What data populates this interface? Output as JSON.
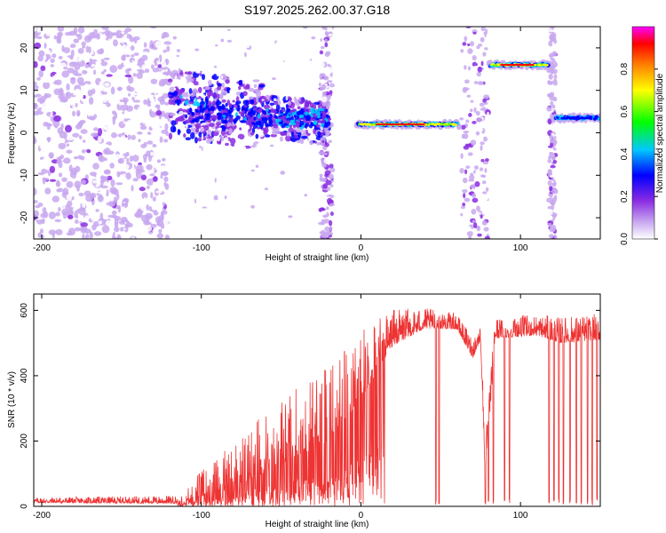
{
  "figure": {
    "title": "S197.2025.262.00.37.G18"
  },
  "chart_data": [
    {
      "type": "heatmap",
      "title": "S197.2025.262.00.37.G18",
      "xlabel": "Height of straight line (km)",
      "ylabel": "Frequency (Hz)",
      "xlim": [
        -205,
        150
      ],
      "ylim": [
        -25,
        25
      ],
      "xticks": [
        -200,
        -100,
        0,
        100
      ],
      "yticks": [
        -20,
        -10,
        0,
        10,
        20
      ],
      "colorbar": {
        "label": "Normalized spectral amplitude",
        "range": [
          0,
          1
        ],
        "ticks": [
          0.0,
          0.2,
          0.4,
          0.6,
          0.8
        ],
        "colors": [
          "#ffffff",
          "#c8a8f0",
          "#8a2be2",
          "#0000ff",
          "#00c8ff",
          "#00ff00",
          "#ffff00",
          "#ff8000",
          "#ff0000",
          "#ff00ff"
        ]
      },
      "features": [
        {
          "x_range": [
            -205,
            -120
          ],
          "frequency": "broadband -25 to 25",
          "amplitude": 0.15
        },
        {
          "x_range": [
            -120,
            -20
          ],
          "frequency_center": [
            6,
            2
          ],
          "amplitude": 0.3
        },
        {
          "x_range": [
            -3,
            62
          ],
          "frequency_center": 2,
          "amplitude": 0.9
        },
        {
          "x_range": [
            80,
            120
          ],
          "frequency_center": 16,
          "amplitude": 0.9
        },
        {
          "x_range": [
            120,
            150
          ],
          "frequency_center": 3,
          "amplitude": 0.5
        }
      ]
    },
    {
      "type": "line",
      "xlabel": "Height of straight line (km)",
      "ylabel": "SNR (10 * v/v)",
      "xlim": [
        -205,
        150
      ],
      "ylim": [
        0,
        650
      ],
      "xticks": [
        -200,
        -100,
        0,
        100
      ],
      "yticks": [
        0,
        200,
        400,
        600
      ],
      "color": "#ee3333",
      "envelope": [
        {
          "x": -205,
          "base": 15,
          "spread": 10
        },
        {
          "x": -115,
          "base": 15,
          "spread": 15
        },
        {
          "x": -105,
          "base": 40,
          "spread": 40
        },
        {
          "x": -80,
          "base": 90,
          "spread": 90
        },
        {
          "x": -50,
          "base": 180,
          "spread": 130
        },
        {
          "x": -20,
          "base": 260,
          "spread": 150
        },
        {
          "x": 0,
          "base": 380,
          "spread": 130
        },
        {
          "x": 20,
          "base": 520,
          "spread": 70
        },
        {
          "x": 40,
          "base": 560,
          "spread": 40
        },
        {
          "x": 60,
          "base": 555,
          "spread": 30
        },
        {
          "x": 70,
          "base": 470,
          "spread": 40
        },
        {
          "x": 75,
          "base": 520,
          "spread": 30
        },
        {
          "x": 78,
          "base": 100,
          "spread": 80
        },
        {
          "x": 84,
          "base": 530,
          "spread": 40
        },
        {
          "x": 110,
          "base": 540,
          "spread": 40
        },
        {
          "x": 125,
          "base": 520,
          "spread": 50
        },
        {
          "x": 150,
          "base": 530,
          "spread": 50
        }
      ],
      "dropouts": [
        47,
        49,
        78,
        80,
        83,
        90,
        93,
        118,
        121,
        124,
        127,
        131,
        135,
        138,
        142,
        145,
        148
      ]
    }
  ]
}
